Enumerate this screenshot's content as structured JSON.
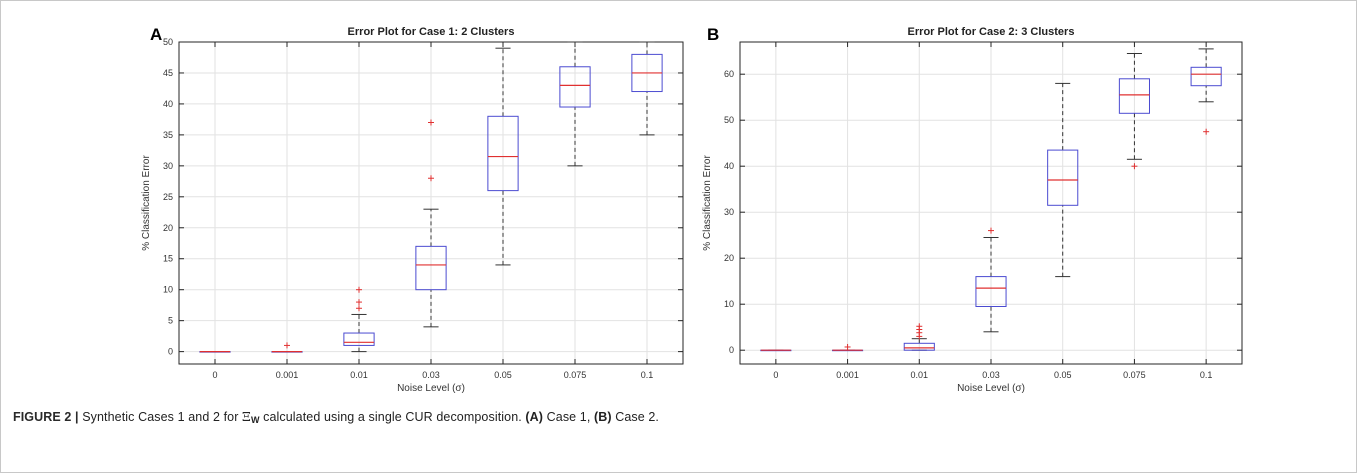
{
  "caption": {
    "figure_label": "FIGURE 2 |",
    "text_before_symbol": " Synthetic Cases 1 and 2 for ",
    "symbol": "Ξ",
    "symbol_subscript": "W",
    "text_after_symbol": " calculated using a single CUR decomposition. ",
    "ref_a": "(A)",
    "text_a": " Case 1, ",
    "ref_b": "(B)",
    "text_b": " Case 2."
  },
  "colors": {
    "box": "#4b4bd1",
    "median": "#e03030",
    "outlier": "#e03030",
    "whisker": "#333333"
  },
  "chart_data": [
    {
      "type": "box",
      "panel_label": "A",
      "title": "Error Plot for Case 1: 2 Clusters",
      "xlabel": "Noise Level (σ)",
      "ylabel": "% Classification Error",
      "categories": [
        "0",
        "0.001",
        "0.01",
        "0.03",
        "0.05",
        "0.075",
        "0.1"
      ],
      "ylim": [
        -2,
        50
      ],
      "yticks": [
        0,
        5,
        10,
        15,
        20,
        25,
        30,
        35,
        40,
        45,
        50
      ],
      "grid": true,
      "boxes": [
        {
          "min": 0,
          "q1": 0,
          "median": 0,
          "q3": 0,
          "max": 0,
          "outliers": []
        },
        {
          "min": 0,
          "q1": 0,
          "median": 0,
          "q3": 0,
          "max": 0,
          "outliers": [
            1
          ]
        },
        {
          "min": 0,
          "q1": 1,
          "median": 1.5,
          "q3": 3,
          "max": 6,
          "outliers": [
            7,
            8,
            10
          ]
        },
        {
          "min": 4,
          "q1": 10,
          "median": 14,
          "q3": 17,
          "max": 23,
          "outliers": [
            28,
            37
          ]
        },
        {
          "min": 14,
          "q1": 26,
          "median": 31.5,
          "q3": 38,
          "max": 49,
          "outliers": []
        },
        {
          "min": 30,
          "q1": 39.5,
          "median": 43,
          "q3": 46,
          "max": 50,
          "outliers": []
        },
        {
          "min": 35,
          "q1": 42,
          "median": 45,
          "q3": 48,
          "max": 50,
          "outliers": []
        }
      ]
    },
    {
      "type": "box",
      "panel_label": "B",
      "title": "Error Plot for Case 2: 3 Clusters",
      "xlabel": "Noise Level (σ)",
      "ylabel": "% Classification Error",
      "categories": [
        "0",
        "0.001",
        "0.01",
        "0.03",
        "0.05",
        "0.075",
        "0.1"
      ],
      "ylim": [
        -3,
        67
      ],
      "yticks": [
        0,
        10,
        20,
        30,
        40,
        50,
        60
      ],
      "grid": true,
      "boxes": [
        {
          "min": 0,
          "q1": 0,
          "median": 0,
          "q3": 0,
          "max": 0,
          "outliers": []
        },
        {
          "min": 0,
          "q1": 0,
          "median": 0,
          "q3": 0,
          "max": 0,
          "outliers": [
            0.7
          ]
        },
        {
          "min": 0,
          "q1": 0,
          "median": 0.5,
          "q3": 1.5,
          "max": 2.5,
          "outliers": [
            3,
            3.8,
            4.5,
            5.2
          ]
        },
        {
          "min": 4,
          "q1": 9.5,
          "median": 13.5,
          "q3": 16,
          "max": 24.5,
          "outliers": [
            26
          ]
        },
        {
          "min": 16,
          "q1": 31.5,
          "median": 37,
          "q3": 43.5,
          "max": 58,
          "outliers": []
        },
        {
          "min": 41.5,
          "q1": 51.5,
          "median": 55.5,
          "q3": 59,
          "max": 64.5,
          "outliers": [
            40
          ]
        },
        {
          "min": 54,
          "q1": 57.5,
          "median": 60,
          "q3": 61.5,
          "max": 65.5,
          "outliers": [
            47.5
          ]
        }
      ]
    }
  ]
}
